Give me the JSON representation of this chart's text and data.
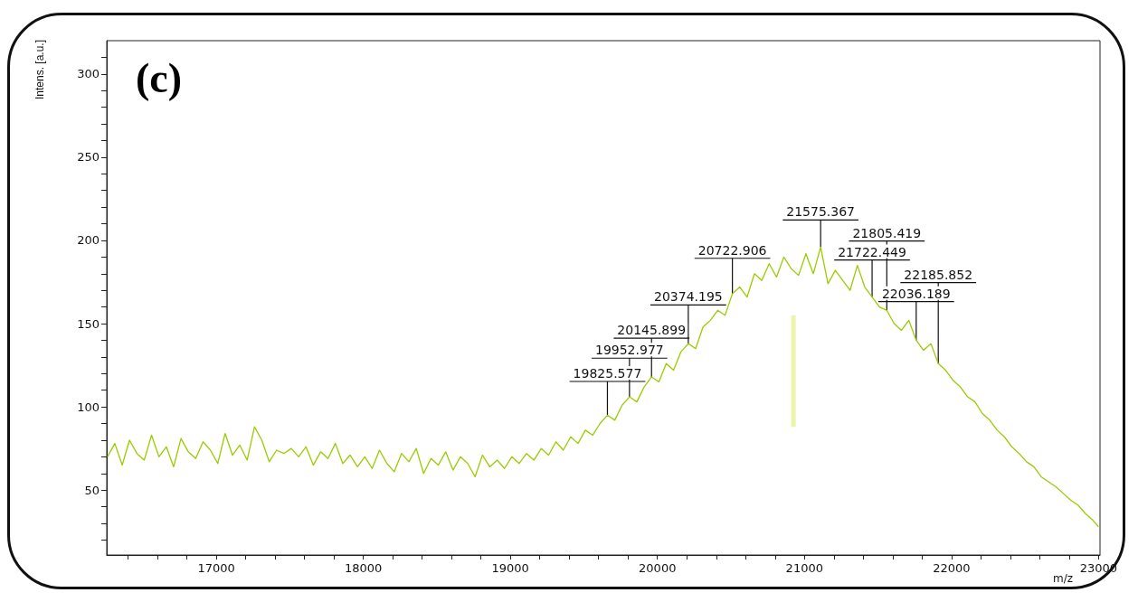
{
  "chart_data": {
    "type": "line",
    "title": "(c)",
    "xlabel": "m/z",
    "ylabel": "Intens. [a.u.]",
    "xlim": [
      16255,
      23010
    ],
    "xticks": [
      {
        "value": 16400,
        "label": null
      },
      {
        "value": 16600,
        "label": null
      },
      {
        "value": 16800,
        "label": null
      },
      17000,
      {
        "value": 17200,
        "label": null
      },
      {
        "value": 17400,
        "label": null
      },
      {
        "value": 17600,
        "label": null
      },
      {
        "value": 17800,
        "label": null
      },
      18000,
      {
        "value": 18200,
        "label": null
      },
      {
        "value": 18400,
        "label": null
      },
      {
        "value": 18600,
        "label": null
      },
      {
        "value": 18800,
        "label": null
      },
      19000,
      {
        "value": 19200,
        "label": null
      },
      {
        "value": 19400,
        "label": null
      },
      {
        "value": 19600,
        "label": null
      },
      {
        "value": 19800,
        "label": null
      },
      20000,
      {
        "value": 20200,
        "label": null
      },
      {
        "value": 20400,
        "label": null
      },
      {
        "value": 20600,
        "label": null
      },
      {
        "value": 20800,
        "label": null
      },
      21000,
      {
        "value": 21200,
        "label": null
      },
      {
        "value": 21400,
        "label": null
      },
      {
        "value": 21600,
        "label": null
      },
      {
        "value": 21800,
        "label": null
      },
      22000,
      {
        "value": 22200,
        "label": null
      },
      {
        "value": 22400,
        "label": null
      },
      {
        "value": 22600,
        "label": null
      },
      {
        "value": 22800,
        "label": null
      },
      23000
    ],
    "ylim": [
      11,
      320
    ],
    "yticks": [
      {
        "value": 20,
        "label": null
      },
      {
        "value": 30,
        "label": null
      },
      {
        "value": 40,
        "label": null
      },
      50,
      {
        "value": 60,
        "label": null
      },
      {
        "value": 70,
        "label": null
      },
      {
        "value": 80,
        "label": null
      },
      {
        "value": 90,
        "label": null
      },
      100,
      {
        "value": 110,
        "label": null
      },
      {
        "value": 120,
        "label": null
      },
      {
        "value": 130,
        "label": null
      },
      {
        "value": 140,
        "label": null
      },
      150,
      {
        "value": 160,
        "label": null
      },
      {
        "value": 170,
        "label": null
      },
      {
        "value": 180,
        "label": null
      },
      {
        "value": 190,
        "label": null
      },
      200,
      {
        "value": 210,
        "label": null
      },
      {
        "value": 220,
        "label": null
      },
      {
        "value": 230,
        "label": null
      },
      {
        "value": 240,
        "label": null
      },
      250,
      {
        "value": 260,
        "label": null
      },
      {
        "value": 270,
        "label": null
      },
      {
        "value": 280,
        "label": null
      },
      {
        "value": 290,
        "label": null
      },
      300,
      {
        "value": 310,
        "label": null
      }
    ],
    "grid": false,
    "marker": "none",
    "line_style": "solid",
    "series": [
      {
        "color": "#99cc00",
        "x": [
          16260,
          16310,
          16360,
          16410,
          16460,
          16510,
          16560,
          16610,
          16660,
          16710,
          16760,
          16810,
          16860,
          16910,
          16960,
          17010,
          17060,
          17110,
          17160,
          17210,
          17260,
          17310,
          17360,
          17410,
          17460,
          17510,
          17560,
          17610,
          17660,
          17710,
          17760,
          17810,
          17860,
          17910,
          17960,
          18010,
          18060,
          18110,
          18160,
          18210,
          18260,
          18310,
          18360,
          18410,
          18460,
          18510,
          18560,
          18610,
          18660,
          18710,
          18760,
          18810,
          18860,
          18910,
          18960,
          19010,
          19060,
          19110,
          19160,
          19210,
          19260,
          19310,
          19360,
          19410,
          19460,
          19510,
          19560,
          19610,
          19660,
          19710,
          19760,
          19810,
          19860,
          19910,
          19960,
          20010,
          20060,
          20110,
          20160,
          20210,
          20260,
          20310,
          20360,
          20410,
          20460,
          20510,
          20560,
          20610,
          20660,
          20710,
          20760,
          20810,
          20860,
          20910,
          20960,
          21010,
          21060,
          21110,
          21160,
          21210,
          21260,
          21310,
          21360,
          21410,
          21460,
          21510,
          21560,
          21610,
          21660,
          21710,
          21760,
          21810,
          21860,
          21910,
          21960,
          22010,
          22060,
          22110,
          22160,
          22210,
          22260,
          22310,
          22360,
          22410,
          22460,
          22510,
          22560,
          22610,
          22660,
          22710,
          22760,
          22810,
          22860,
          22910,
          22960,
          23000
        ],
        "values": [
          70,
          78,
          65,
          80,
          72,
          68,
          83,
          70,
          76,
          64,
          81,
          73,
          69,
          79,
          74,
          66,
          84,
          71,
          77,
          68,
          88,
          80,
          67,
          74,
          72,
          75,
          70,
          76,
          65,
          73,
          69,
          78,
          66,
          71,
          64,
          70,
          63,
          74,
          66,
          61,
          72,
          67,
          75,
          60,
          69,
          65,
          73,
          62,
          70,
          66,
          58,
          71,
          64,
          68,
          63,
          70,
          66,
          72,
          68,
          75,
          71,
          79,
          74,
          82,
          78,
          86,
          83,
          90,
          95,
          92,
          101,
          106,
          103,
          112,
          118,
          115,
          126,
          122,
          133,
          138,
          135,
          148,
          152,
          158,
          155,
          168,
          172,
          166,
          180,
          176,
          186,
          178,
          190,
          183,
          179,
          192,
          180,
          196,
          174,
          182,
          176,
          170,
          185,
          172,
          166,
          160,
          158,
          150,
          146,
          152,
          140,
          134,
          138,
          126,
          122,
          116,
          112,
          106,
          103,
          96,
          92,
          86,
          82,
          76,
          72,
          67,
          64,
          58,
          55,
          52,
          48,
          44,
          41,
          36,
          32,
          28
        ]
      },
      {
        "color": "#eaf5a8",
        "x": [
          20925,
          20925
        ],
        "values": [
          88,
          155
        ]
      }
    ],
    "annotations": [
      {
        "text": "19825.577",
        "x": 19660,
        "y": 95
      },
      {
        "text": "19952.977",
        "x": 19810,
        "y": 106
      },
      {
        "text": "20145.899",
        "x": 19960,
        "y": 118
      },
      {
        "text": "20374.195",
        "x": 20210,
        "y": 138
      },
      {
        "text": "20722.906",
        "x": 20510,
        "y": 168
      },
      {
        "text": "21575.367",
        "x": 21110,
        "y": 196
      },
      {
        "text": "21722.449",
        "x": 21460,
        "y": 166
      },
      {
        "text": "21805.419",
        "x": 21560,
        "y": 158
      },
      {
        "text": "22036.189",
        "x": 21760,
        "y": 140
      },
      {
        "text": "22185.852",
        "x": 21910,
        "y": 126
      }
    ]
  }
}
